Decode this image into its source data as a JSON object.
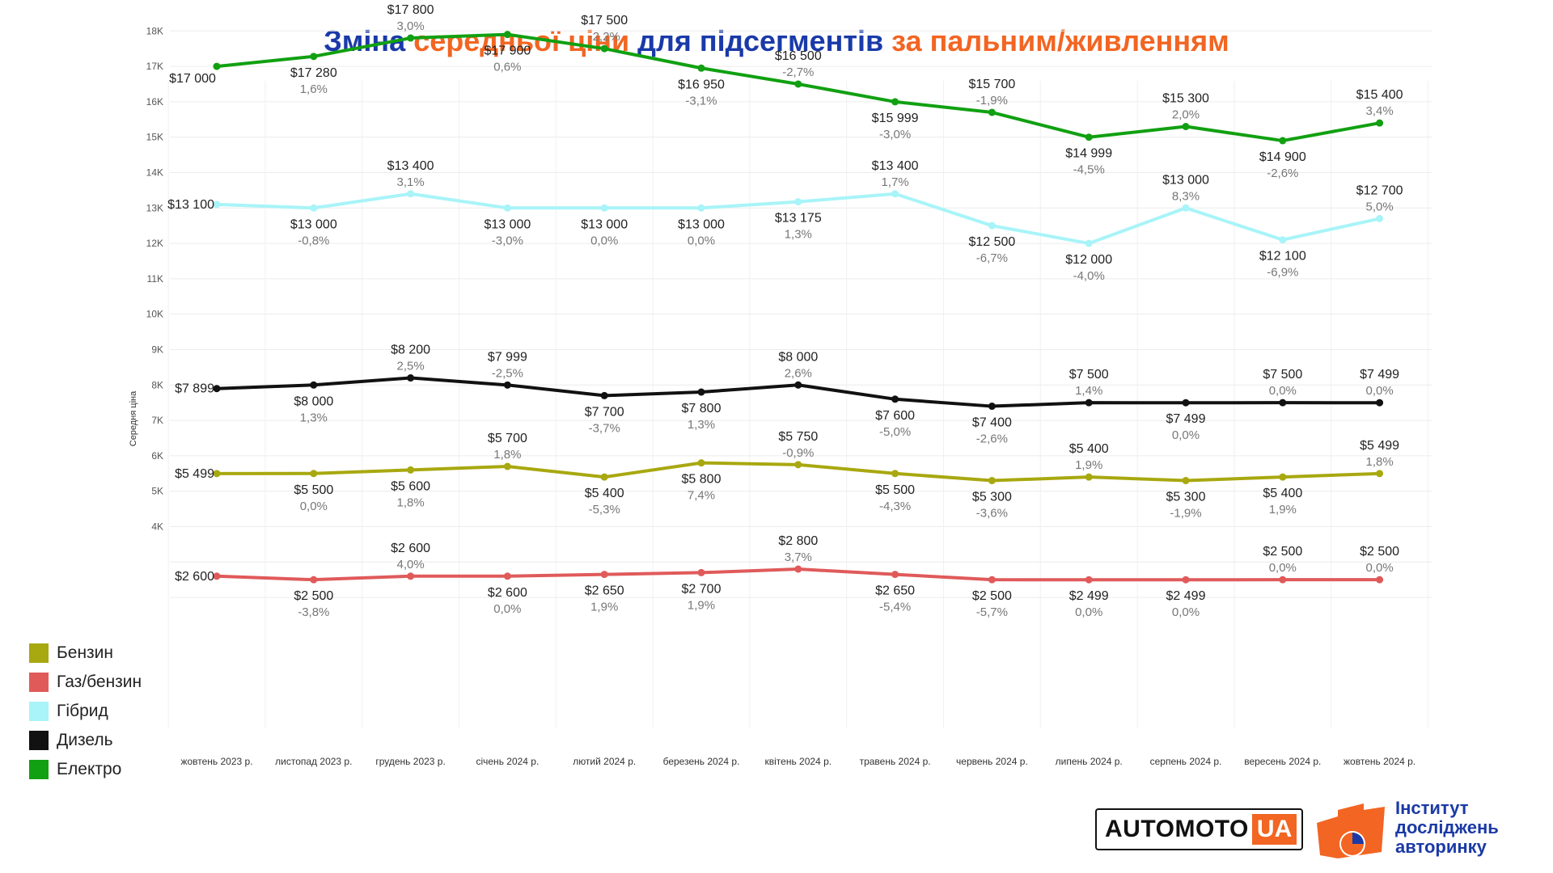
{
  "title": {
    "part1": "Зміна ",
    "part2": "середньої ціни",
    "part3": " для підсегментів ",
    "part4": "за пальним/живленням",
    "color_blue": "#1a3aa8",
    "color_orange": "#f26522"
  },
  "chart_data": {
    "type": "line",
    "ylabel": "Середня ціна",
    "xlabel": "",
    "ylim": [
      0,
      18600
    ],
    "yticks": [
      "4K",
      "5K",
      "6K",
      "7K",
      "8K",
      "9K",
      "10K",
      "11K",
      "12K",
      "13K",
      "14K",
      "15K",
      "16K",
      "17K",
      "18K"
    ],
    "grid": true,
    "legend_position": "left",
    "categories": [
      "жовтень 2023 р.",
      "листопад 2023 р.",
      "грудень 2023 р.",
      "січень 2024 р.",
      "лютий 2024 р.",
      "березень 2024 р.",
      "квітень 2024 р.",
      "травень 2024 р.",
      "червень 2024 р.",
      "липень 2024 р.",
      "серпень 2024 р.",
      "вересень 2024 р.",
      "жовтень 2024 р."
    ],
    "series": [
      {
        "name": "Електро",
        "color": "#11a011",
        "values": [
          17000,
          17280,
          17800,
          17900,
          17500,
          16950,
          16500,
          15999,
          15700,
          14999,
          15300,
          14900,
          15400
        ],
        "labels": [
          "$17 000",
          "$17 280",
          "$17 800",
          "$17 900",
          "$17 500",
          "$16 950",
          "$16 500",
          "$15 999",
          "$15 700",
          "$14 999",
          "$15 300",
          "$14 900",
          "$15 400"
        ],
        "changes": [
          "",
          "1,6%",
          "3,0%",
          "0,6%",
          "-2,2%",
          "-3,1%",
          "-2,7%",
          "-3,0%",
          "-1,9%",
          "-4,5%",
          "2,0%",
          "-2,6%",
          "3,4%"
        ]
      },
      {
        "name": "Гібрид",
        "color": "#a8f4f8",
        "values": [
          13100,
          13000,
          13400,
          13000,
          13000,
          13000,
          13175,
          13400,
          12500,
          12000,
          13000,
          12100,
          12700
        ],
        "labels": [
          "$13 100",
          "$13 000",
          "$13 400",
          "$13 000",
          "$13 000",
          "$13 000",
          "$13 175",
          "$13 400",
          "$12 500",
          "$12 000",
          "$13 000",
          "$12 100",
          "$12 700"
        ],
        "changes": [
          "",
          "-0,8%",
          "3,1%",
          "-3,0%",
          "0,0%",
          "0,0%",
          "1,3%",
          "1,7%",
          "-6,7%",
          "-4,0%",
          "8,3%",
          "-6,9%",
          "5,0%"
        ]
      },
      {
        "name": "Дизель",
        "color": "#111111",
        "values": [
          7899,
          8000,
          8200,
          7999,
          7700,
          7800,
          8000,
          7600,
          7400,
          7500,
          7499,
          7500,
          7499
        ],
        "labels": [
          "$7 899",
          "$8 000",
          "$8 200",
          "$7 999",
          "$7 700",
          "$7 800",
          "$8 000",
          "$7 600",
          "$7 400",
          "$7 500",
          "$7 499",
          "$7 500",
          "$7 499"
        ],
        "changes": [
          "",
          "1,3%",
          "2,5%",
          "-2,5%",
          "-3,7%",
          "1,3%",
          "2,6%",
          "-5,0%",
          "-2,6%",
          "1,4%",
          "0,0%",
          "0,0%",
          "0,0%"
        ]
      },
      {
        "name": "Бензин",
        "color": "#a8a810",
        "values": [
          5499,
          5500,
          5600,
          5700,
          5400,
          5800,
          5750,
          5500,
          5300,
          5400,
          5300,
          5400,
          5499
        ],
        "labels": [
          "$5 499",
          "$5 500",
          "$5 600",
          "$5 700",
          "$5 400",
          "$5 800",
          "$5 750",
          "$5 500",
          "$5 300",
          "$5 400",
          "$5 300",
          "$5 400",
          "$5 499"
        ],
        "changes": [
          "",
          "0,0%",
          "1,8%",
          "1,8%",
          "-5,3%",
          "7,4%",
          "-0,9%",
          "-4,3%",
          "-3,6%",
          "1,9%",
          "-1,9%",
          "1,9%",
          "1,8%"
        ]
      },
      {
        "name": "Газ/бензин",
        "color": "#e05a5a",
        "values": [
          2600,
          2500,
          2600,
          2600,
          2650,
          2700,
          2800,
          2650,
          2500,
          2499,
          2499,
          2500,
          2500
        ],
        "labels": [
          "$2 600",
          "$2 500",
          "$2 600",
          "$2 600",
          "$2 650",
          "$2 700",
          "$2 800",
          "$2 650",
          "$2 500",
          "$2 499",
          "$2 499",
          "$2 500",
          "$2 500"
        ],
        "changes": [
          "",
          "-3,8%",
          "4,0%",
          "0,0%",
          "1,9%",
          "1,9%",
          "3,7%",
          "-5,4%",
          "-5,7%",
          "0,0%",
          "0,0%",
          "0,0%",
          "0,0%"
        ]
      }
    ]
  },
  "legend": [
    {
      "label": "Бензин",
      "color": "#a8a810"
    },
    {
      "label": "Газ/бензин",
      "color": "#e05a5a"
    },
    {
      "label": "Гібрид",
      "color": "#a8f4f8"
    },
    {
      "label": "Дизель",
      "color": "#111111"
    },
    {
      "label": "Електро",
      "color": "#11a011"
    }
  ],
  "logos": {
    "automoto_main": "AUTOMOTO",
    "automoto_suffix": "UA",
    "institute_line1": "Інститут",
    "institute_line2": "досліджень",
    "institute_line3": "авторинку"
  }
}
